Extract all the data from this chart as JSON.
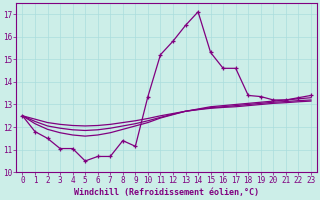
{
  "xlabel": "Windchill (Refroidissement éolien,°C)",
  "background_color": "#cceee8",
  "line_color": "#800080",
  "grid_color": "#aadddd",
  "x_values": [
    0,
    1,
    2,
    3,
    4,
    5,
    6,
    7,
    8,
    9,
    10,
    11,
    12,
    13,
    14,
    15,
    16,
    17,
    18,
    19,
    20,
    21,
    22,
    23
  ],
  "line1": [
    12.5,
    11.8,
    11.5,
    11.05,
    11.05,
    10.5,
    10.7,
    10.7,
    11.4,
    11.15,
    13.35,
    15.2,
    15.8,
    16.5,
    17.1,
    15.3,
    14.6,
    14.6,
    13.4,
    13.35,
    13.2,
    13.2,
    13.3,
    13.4
  ],
  "line_flat1": [
    12.5,
    12.15,
    11.9,
    11.75,
    11.65,
    11.6,
    11.65,
    11.75,
    11.9,
    12.05,
    12.2,
    12.4,
    12.55,
    12.7,
    12.8,
    12.9,
    12.95,
    13.0,
    13.05,
    13.1,
    13.15,
    13.2,
    13.25,
    13.3
  ],
  "line_flat2": [
    12.5,
    12.25,
    12.05,
    11.95,
    11.88,
    11.85,
    11.88,
    11.95,
    12.05,
    12.15,
    12.28,
    12.43,
    12.57,
    12.7,
    12.78,
    12.86,
    12.9,
    12.95,
    13.0,
    13.05,
    13.1,
    13.13,
    13.17,
    13.2
  ],
  "line_flat3": [
    12.5,
    12.35,
    12.2,
    12.12,
    12.07,
    12.05,
    12.07,
    12.12,
    12.2,
    12.28,
    12.38,
    12.5,
    12.6,
    12.7,
    12.77,
    12.83,
    12.87,
    12.9,
    12.95,
    13.0,
    13.05,
    13.08,
    13.12,
    13.15
  ],
  "ylim": [
    10,
    17.5
  ],
  "xlim": [
    -0.5,
    23.5
  ],
  "yticks": [
    10,
    11,
    12,
    13,
    14,
    15,
    16,
    17
  ],
  "xticks": [
    0,
    1,
    2,
    3,
    4,
    5,
    6,
    7,
    8,
    9,
    10,
    11,
    12,
    13,
    14,
    15,
    16,
    17,
    18,
    19,
    20,
    21,
    22,
    23
  ],
  "font_color": "#800080",
  "tick_fontsize": 5.5,
  "xlabel_fontsize": 6.0
}
